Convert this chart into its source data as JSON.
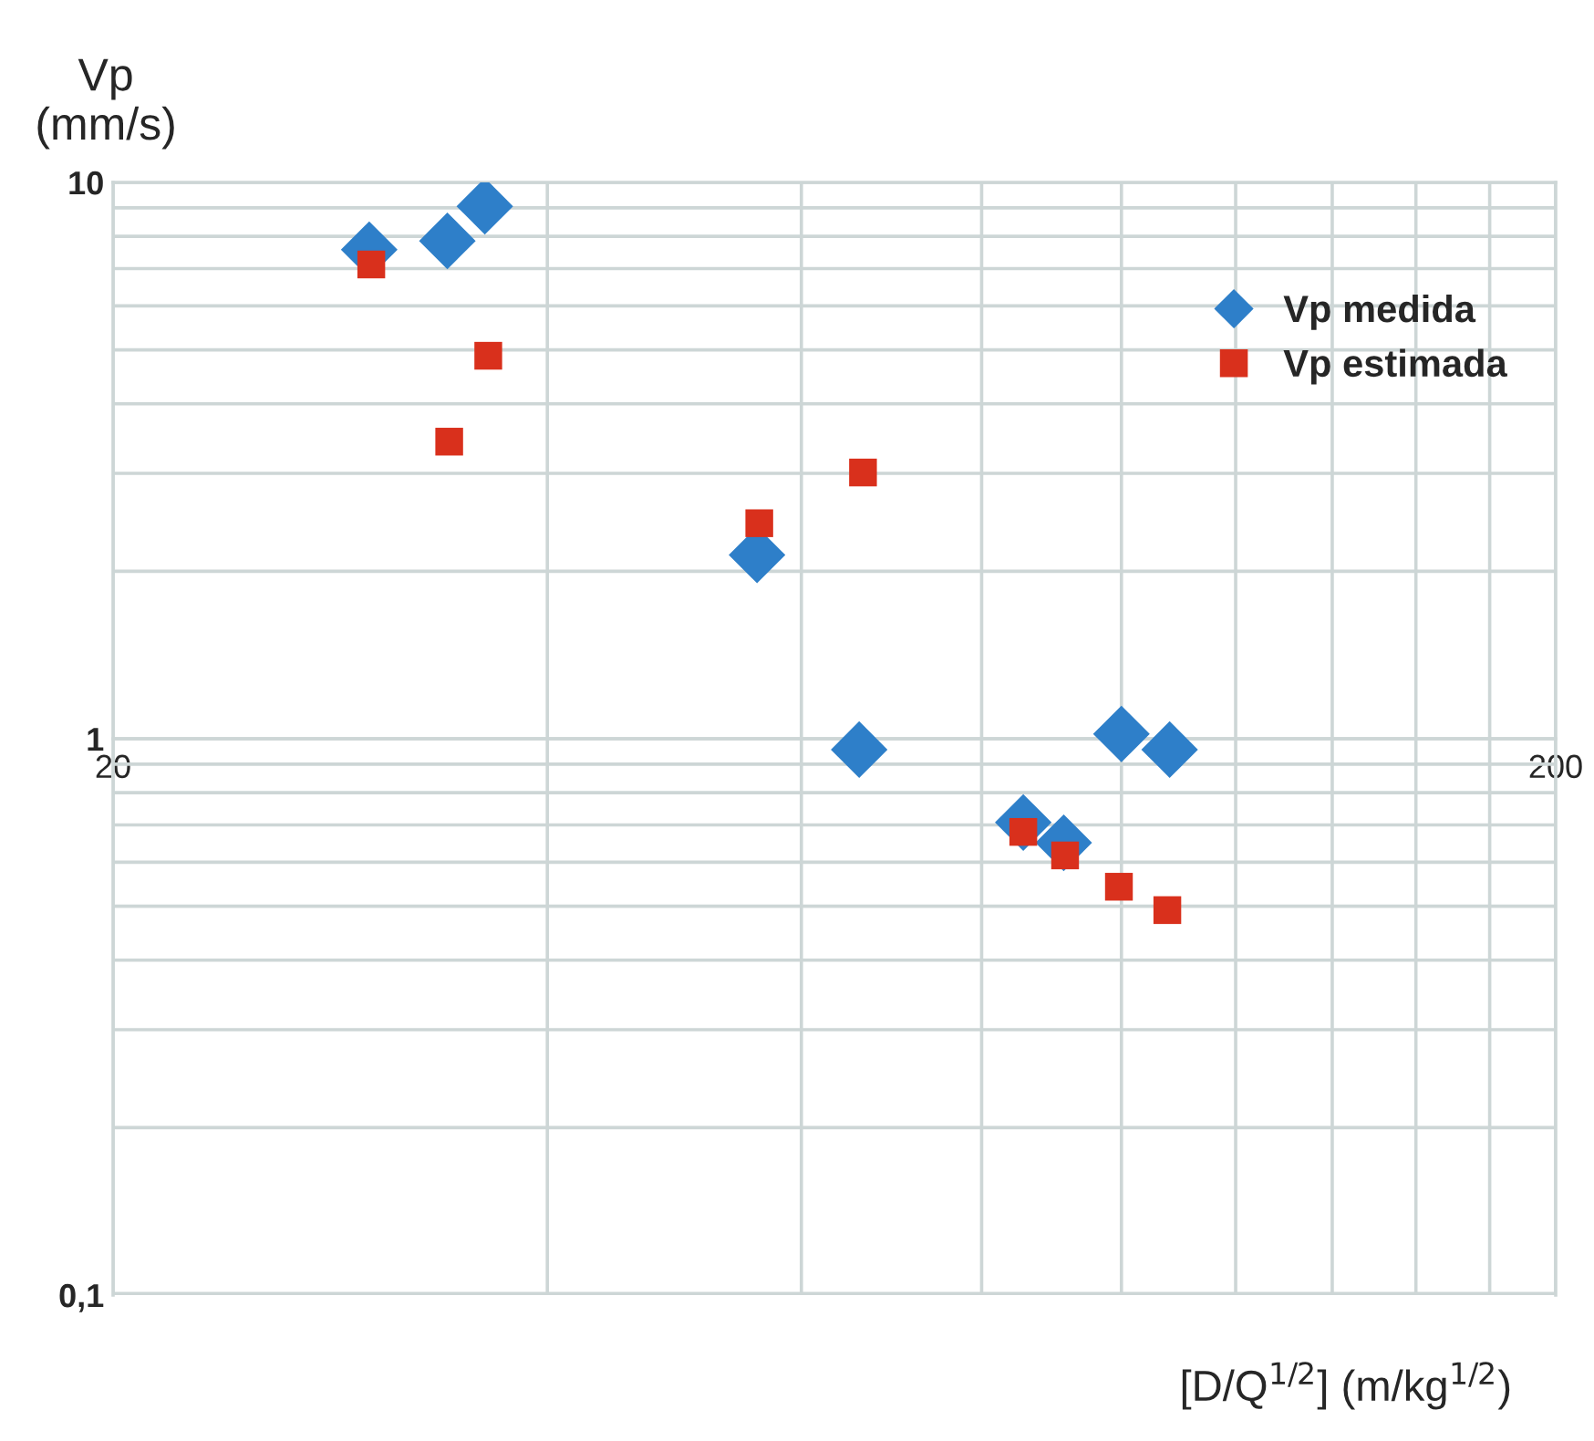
{
  "chart_data": {
    "type": "scatter",
    "xlabel": "[D/Q$^{1/2}$] (m/kg$^{1/2}$)",
    "ylabel": "Vp\n(mm/s)",
    "log": "xy",
    "xlim": [
      20,
      200
    ],
    "ylim": [
      0.1,
      10
    ],
    "xticks": [
      20,
      {
        "value": 40,
        "label": null
      },
      {
        "value": 60,
        "label": null
      },
      {
        "value": 80,
        "label": null
      },
      {
        "value": 100,
        "label": null
      },
      {
        "value": 120,
        "label": null
      },
      {
        "value": 140,
        "label": null
      },
      {
        "value": 160,
        "label": null
      },
      {
        "value": 180,
        "label": null
      },
      200
    ],
    "yticks": [
      {
        "value": 0.1,
        "label": "0,1"
      },
      {
        "value": 0.2,
        "label": null
      },
      {
        "value": 0.3,
        "label": null
      },
      {
        "value": 0.4,
        "label": null
      },
      {
        "value": 0.5,
        "label": null
      },
      {
        "value": 0.6,
        "label": null
      },
      {
        "value": 0.7,
        "label": null
      },
      {
        "value": 0.8,
        "label": null
      },
      {
        "value": 0.9,
        "label": null
      },
      1,
      {
        "value": 2,
        "label": null
      },
      {
        "value": 3,
        "label": null
      },
      {
        "value": 4,
        "label": null
      },
      {
        "value": 5,
        "label": null
      },
      {
        "value": 6,
        "label": null
      },
      {
        "value": 7,
        "label": null
      },
      {
        "value": 8,
        "label": null
      },
      {
        "value": 9,
        "label": null
      },
      10
    ],
    "grid": true,
    "legend": "top right",
    "series": [
      {
        "name": "Vp medida",
        "color": "#2e7fc9",
        "marker": "diamond",
        "x": [
          30.1,
          34.1,
          36.2,
          55.9,
          65.8,
          85.5,
          91.2,
          100,
          108
        ],
        "values": [
          7.57,
          7.85,
          9.06,
          2.14,
          0.956,
          0.707,
          0.65,
          1.02,
          0.956
        ]
      },
      {
        "name": "Vp estimada",
        "color": "#d9301c",
        "marker": "square",
        "x": [
          30.2,
          34.2,
          36.4,
          56.1,
          66.2,
          85.5,
          91.4,
          99.6,
          107.6
        ],
        "values": [
          7.12,
          3.42,
          4.88,
          2.44,
          3.01,
          0.68,
          0.617,
          0.542,
          0.492
        ]
      }
    ]
  }
}
